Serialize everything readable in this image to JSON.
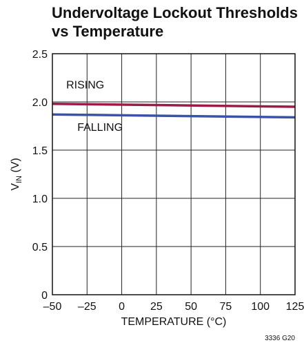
{
  "chart_data": {
    "type": "line",
    "title": [
      "Undervoltage Lockout Thresholds",
      "vs Temperature"
    ],
    "xlabel": "TEMPERATURE (°C)",
    "ylabel_main": "V",
    "ylabel_sub": "IN",
    "ylabel_unit": " (V)",
    "xlim": [
      -50,
      125
    ],
    "ylim": [
      0,
      2.5
    ],
    "xticks": [
      {
        "value": -50,
        "label": "–50"
      },
      {
        "value": -25,
        "label": "–25"
      },
      {
        "value": 0,
        "label": "0"
      },
      {
        "value": 25,
        "label": "25"
      },
      {
        "value": 50,
        "label": "50"
      },
      {
        "value": 75,
        "label": "75"
      },
      {
        "value": 100,
        "label": "100"
      },
      {
        "value": 125,
        "label": "125"
      }
    ],
    "yticks": [
      {
        "value": 0,
        "label": "0"
      },
      {
        "value": 0.5,
        "label": "0.5"
      },
      {
        "value": 1.0,
        "label": "1.0"
      },
      {
        "value": 1.5,
        "label": "1.5"
      },
      {
        "value": 2.0,
        "label": "2.0"
      },
      {
        "value": 2.5,
        "label": "2.5"
      }
    ],
    "grid": true,
    "series": [
      {
        "name": "RISING",
        "color": "#9b1b45",
        "x": [
          -50,
          125
        ],
        "y": [
          1.98,
          1.95
        ]
      },
      {
        "name": "FALLING",
        "color": "#3a52a8",
        "x": [
          -50,
          125
        ],
        "y": [
          1.87,
          1.84
        ]
      }
    ],
    "annotations": [
      {
        "text": "RISING",
        "x": -40,
        "y": 2.14
      },
      {
        "text": "FALLING",
        "x": -32,
        "y": 1.7
      }
    ],
    "figure_id": "3336 G20"
  }
}
